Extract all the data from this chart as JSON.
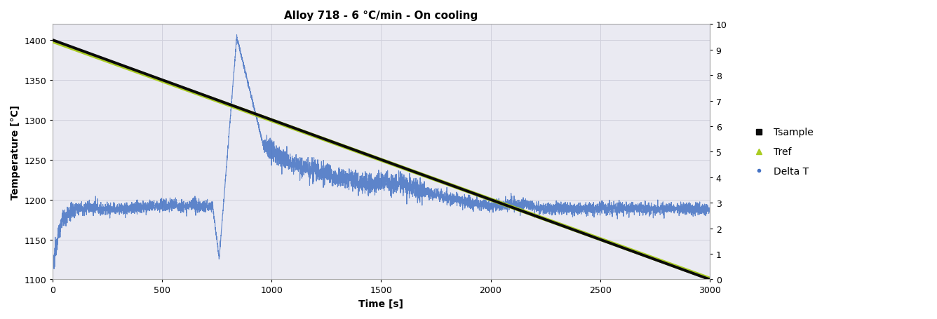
{
  "title": "Alloy 718 - 6 °C/min - On cooling",
  "xlabel": "Time [s]",
  "ylabel": "Temperature [°C]",
  "xlim": [
    0,
    3000
  ],
  "ylim_left": [
    1100,
    1420
  ],
  "ylim_right": [
    0,
    10
  ],
  "yticks_left": [
    1100,
    1150,
    1200,
    1250,
    1300,
    1350,
    1400
  ],
  "yticks_right": [
    0,
    1,
    2,
    3,
    4,
    5,
    6,
    7,
    8,
    9,
    10
  ],
  "xticks": [
    0,
    500,
    1000,
    1500,
    2000,
    2500,
    3000
  ],
  "grid_color": "#d0d0dc",
  "bg_color": "#eaeaf2",
  "tsample_color": "#0a0a0a",
  "tref_color": "#aacc22",
  "deltat_color": "#4472c4",
  "legend_labels": [
    "Tsample",
    "Tref",
    "Delta T"
  ],
  "title_fontsize": 11,
  "axis_fontsize": 10,
  "tick_fontsize": 9
}
